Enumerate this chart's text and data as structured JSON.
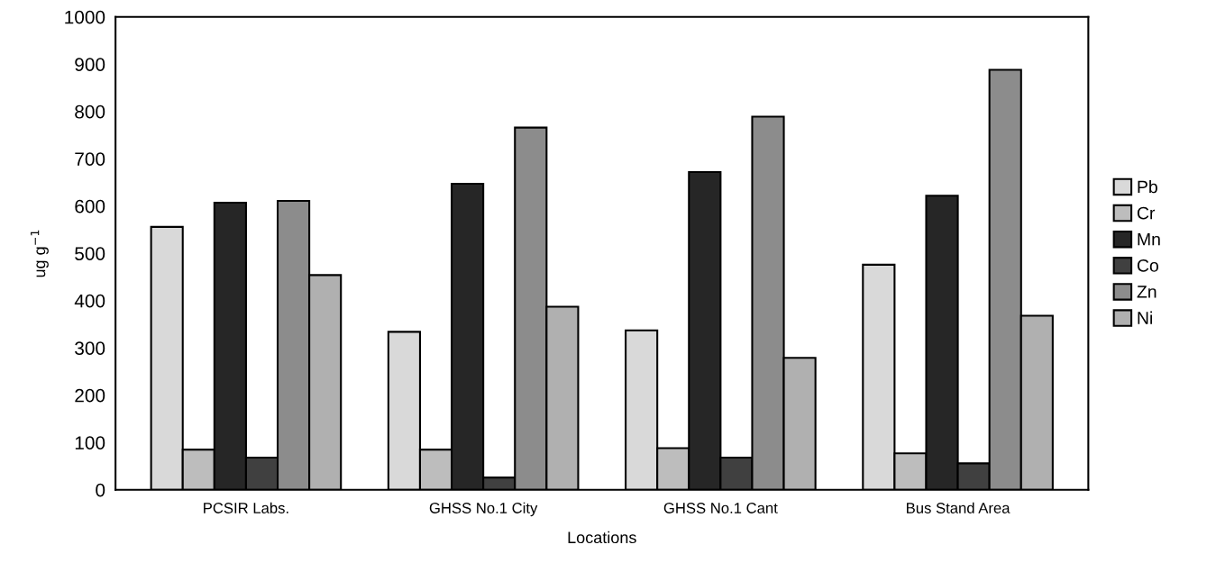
{
  "chart_data": {
    "type": "bar",
    "xlabel": "Locations",
    "ylabel": "ug g$^{−1}$",
    "categories": [
      "PCSIR Labs.",
      "GHSS No.1 City",
      "GHSS No.1 Cant",
      "Bus Stand Area"
    ],
    "series": [
      {
        "name": "Pb",
        "color": "#d9d9d9",
        "values": [
          556,
          334,
          337,
          476
        ]
      },
      {
        "name": "Cr",
        "color": "#bdbdbd",
        "values": [
          85,
          85,
          88,
          77
        ]
      },
      {
        "name": "Mn",
        "color": "#262626",
        "values": [
          607,
          647,
          672,
          622
        ]
      },
      {
        "name": "Co",
        "color": "#404040",
        "values": [
          68,
          26,
          68,
          56
        ]
      },
      {
        "name": "Zn",
        "color": "#8c8c8c",
        "values": [
          611,
          766,
          789,
          888
        ]
      },
      {
        "name": "Ni",
        "color": "#b0b0b0",
        "values": [
          454,
          387,
          279,
          368
        ]
      }
    ],
    "ylim": [
      0,
      1000
    ],
    "yticks": [
      0,
      100,
      200,
      300,
      400,
      500,
      600,
      700,
      800,
      900,
      1000
    ],
    "grid": false,
    "legend": "right"
  }
}
